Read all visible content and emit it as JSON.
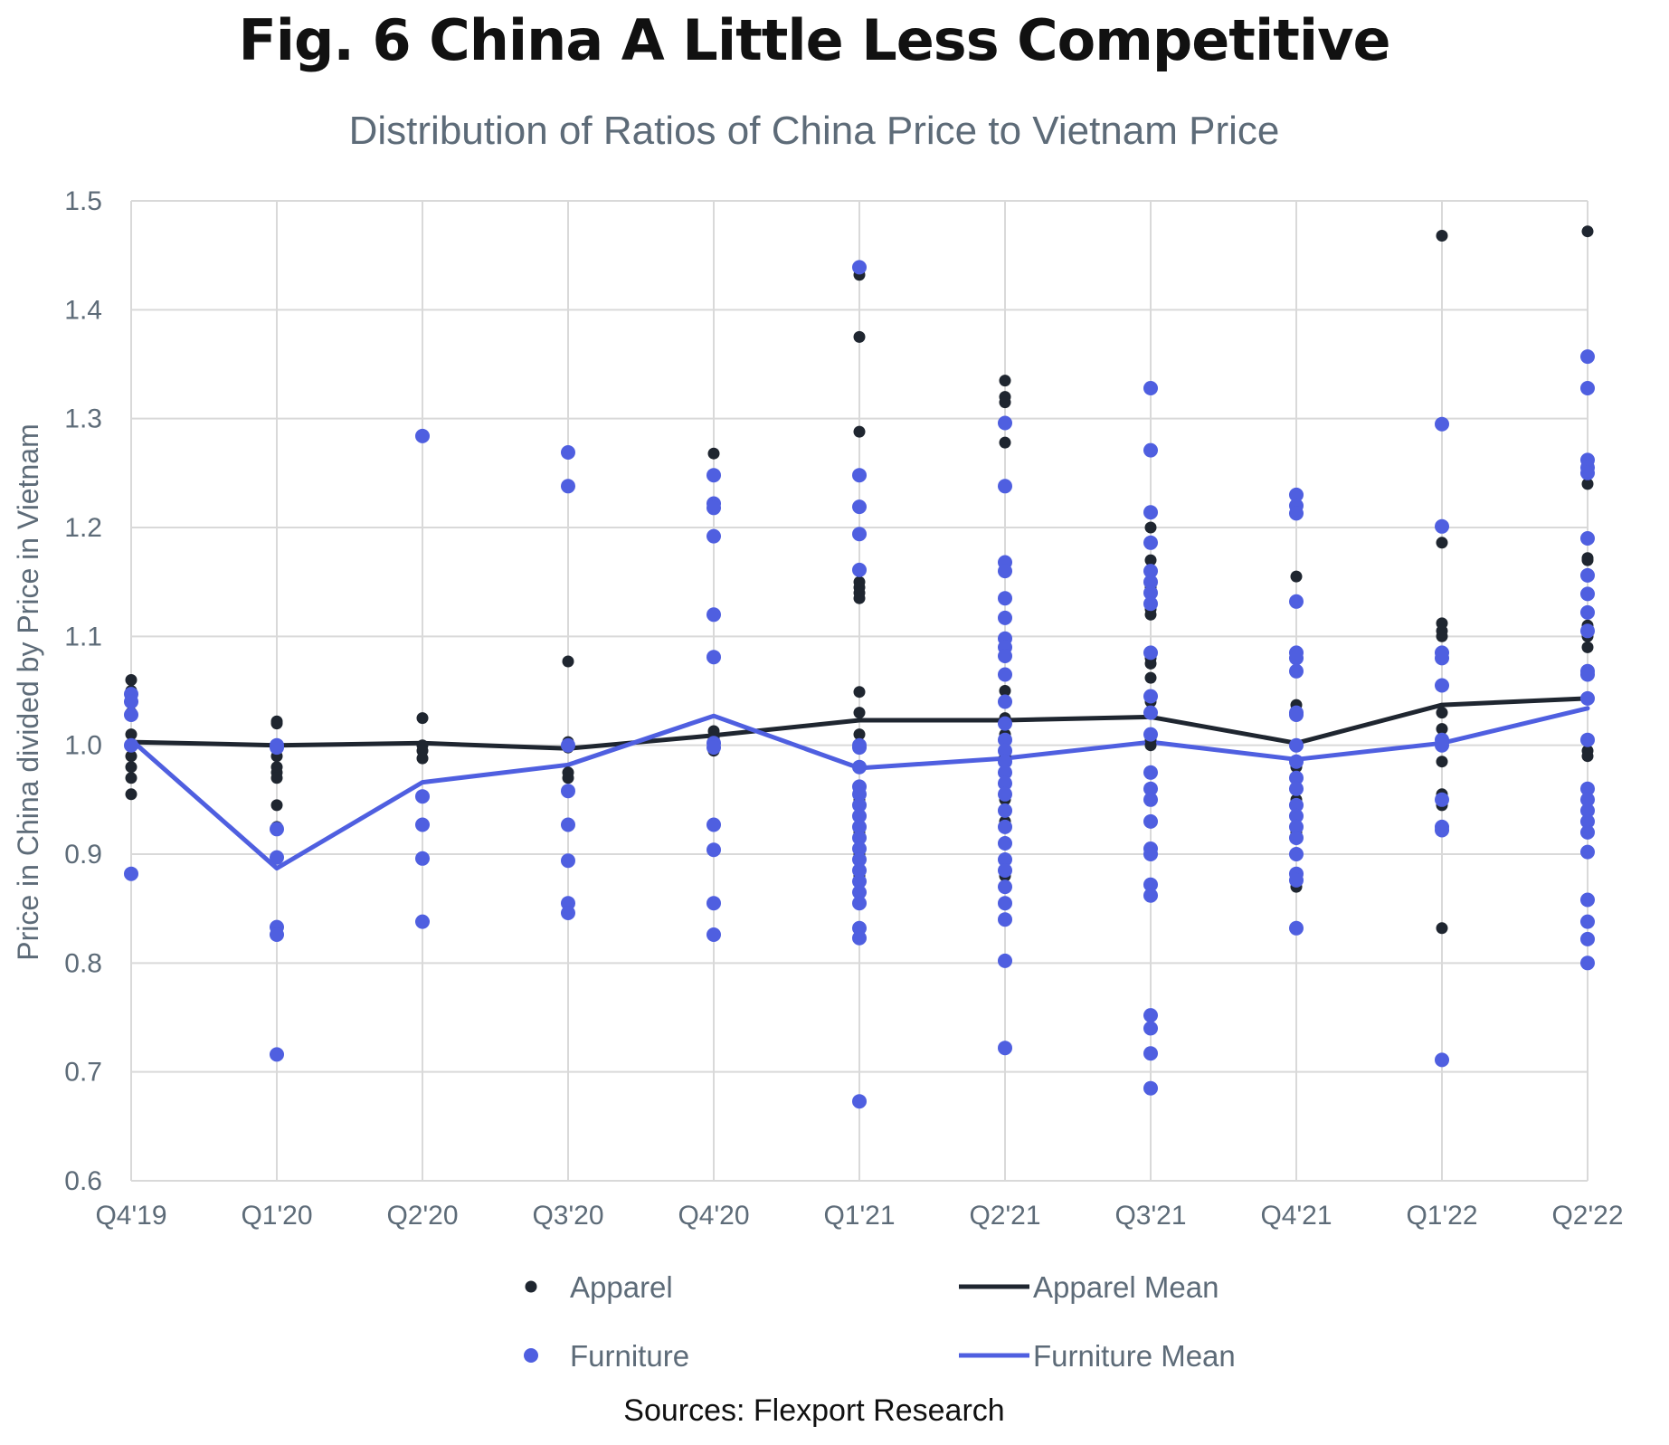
{
  "chart_data": {
    "type": "scatter",
    "title": "Fig. 6 China A Little Less Competitive",
    "subtitle": "Distribution of Ratios of China Price to Vietnam Price",
    "source": "Sources: Flexport Research",
    "ylabel": "Price in China divided by Price in Vietnam",
    "ylim": [
      0.6,
      1.5
    ],
    "yticks": [
      "0.6",
      "0.7",
      "0.8",
      "0.9",
      "1.0",
      "1.1",
      "1.2",
      "1.3",
      "1.4",
      "1.5"
    ],
    "categories": [
      "Q4'19",
      "Q1'20",
      "Q2'20",
      "Q3'20",
      "Q4'20",
      "Q1'21",
      "Q2'21",
      "Q3'21",
      "Q4'21",
      "Q1'22",
      "Q2'22"
    ],
    "grid": true,
    "legend_position": "bottom",
    "colors": {
      "apparel": "#1f2630",
      "furniture": "#4f5fe0",
      "grid": "#d9d9d9",
      "axis_text": "#5d6b78"
    },
    "legend": [
      {
        "label": "Apparel",
        "kind": "marker",
        "series": "apparel"
      },
      {
        "label": "Apparel Mean",
        "kind": "line",
        "series": "apparel"
      },
      {
        "label": "Furniture",
        "kind": "marker",
        "series": "furniture"
      },
      {
        "label": "Furniture Mean",
        "kind": "line",
        "series": "furniture"
      }
    ],
    "series": [
      {
        "name": "Apparel",
        "kind": "points",
        "color": "#1f2630",
        "points": [
          [
            0,
            1.06
          ],
          [
            0,
            1.05
          ],
          [
            0,
            1.04
          ],
          [
            0,
            1.03
          ],
          [
            0,
            1.01
          ],
          [
            0,
            0.99
          ],
          [
            0,
            0.98
          ],
          [
            0,
            0.97
          ],
          [
            0,
            0.955
          ],
          [
            1,
            1.022
          ],
          [
            1,
            1.02
          ],
          [
            1,
            1.0
          ],
          [
            1,
            0.99
          ],
          [
            1,
            0.98
          ],
          [
            1,
            0.975
          ],
          [
            1,
            0.97
          ],
          [
            1,
            0.945
          ],
          [
            1,
            0.925
          ],
          [
            2,
            1.025
          ],
          [
            2,
            1.0
          ],
          [
            2,
            0.995
          ],
          [
            2,
            0.988
          ],
          [
            3,
            1.077
          ],
          [
            3,
            1.003
          ],
          [
            3,
            0.998
          ],
          [
            3,
            0.975
          ],
          [
            3,
            0.97
          ],
          [
            4,
            1.268
          ],
          [
            4,
            1.013
          ],
          [
            4,
            1.007
          ],
          [
            4,
            1.0
          ],
          [
            4,
            0.995
          ],
          [
            5,
            1.432
          ],
          [
            5,
            1.375
          ],
          [
            5,
            1.288
          ],
          [
            5,
            1.16
          ],
          [
            5,
            1.15
          ],
          [
            5,
            1.145
          ],
          [
            5,
            1.14
          ],
          [
            5,
            1.135
          ],
          [
            5,
            1.049
          ],
          [
            5,
            1.03
          ],
          [
            5,
            1.01
          ],
          [
            5,
            1.0
          ],
          [
            5,
            0.98
          ],
          [
            5,
            0.95
          ],
          [
            5,
            0.92
          ],
          [
            5,
            0.9
          ],
          [
            5,
            0.88
          ],
          [
            6,
            1.335
          ],
          [
            6,
            1.32
          ],
          [
            6,
            1.315
          ],
          [
            6,
            1.278
          ],
          [
            6,
            1.05
          ],
          [
            6,
            1.025
          ],
          [
            6,
            1.01
          ],
          [
            6,
            0.99
          ],
          [
            6,
            0.95
          ],
          [
            6,
            0.93
          ],
          [
            6,
            0.91
          ],
          [
            6,
            0.88
          ],
          [
            6,
            0.87
          ],
          [
            6,
            0.855
          ],
          [
            7,
            1.2
          ],
          [
            7,
            1.17
          ],
          [
            7,
            1.145
          ],
          [
            7,
            1.125
          ],
          [
            7,
            1.12
          ],
          [
            7,
            1.08
          ],
          [
            7,
            1.075
          ],
          [
            7,
            1.062
          ],
          [
            7,
            1.04
          ],
          [
            7,
            1.03
          ],
          [
            7,
            1.005
          ],
          [
            7,
            1.0
          ],
          [
            8,
            1.155
          ],
          [
            8,
            1.037
          ],
          [
            8,
            1.0
          ],
          [
            8,
            0.98
          ],
          [
            8,
            0.97
          ],
          [
            8,
            0.95
          ],
          [
            8,
            0.92
          ],
          [
            8,
            0.9
          ],
          [
            8,
            0.87
          ],
          [
            9,
            1.468
          ],
          [
            9,
            1.186
          ],
          [
            9,
            1.112
          ],
          [
            9,
            1.105
          ],
          [
            9,
            1.1
          ],
          [
            9,
            1.03
          ],
          [
            9,
            1.015
          ],
          [
            9,
            1.0
          ],
          [
            9,
            0.985
          ],
          [
            9,
            0.955
          ],
          [
            9,
            0.945
          ],
          [
            9,
            0.832
          ],
          [
            10,
            1.472
          ],
          [
            10,
            1.24
          ],
          [
            10,
            1.172
          ],
          [
            10,
            1.17
          ],
          [
            10,
            1.11
          ],
          [
            10,
            1.1
          ],
          [
            10,
            1.09
          ],
          [
            10,
            1.005
          ],
          [
            10,
            0.995
          ],
          [
            10,
            0.99
          ],
          [
            10,
            0.96
          ],
          [
            10,
            0.93
          ]
        ]
      },
      {
        "name": "Furniture",
        "kind": "points",
        "color": "#4f5fe0",
        "points": [
          [
            0,
            1.047
          ],
          [
            0,
            1.04
          ],
          [
            0,
            1.028
          ],
          [
            0,
            1.0
          ],
          [
            0,
            0.882
          ],
          [
            1,
            1.0
          ],
          [
            1,
            0.998
          ],
          [
            1,
            0.923
          ],
          [
            1,
            0.897
          ],
          [
            1,
            0.833
          ],
          [
            1,
            0.826
          ],
          [
            1,
            0.716
          ],
          [
            2,
            1.284
          ],
          [
            2,
            0.953
          ],
          [
            2,
            0.927
          ],
          [
            2,
            0.896
          ],
          [
            2,
            0.838
          ],
          [
            3,
            1.269
          ],
          [
            3,
            1.238
          ],
          [
            3,
            1.0
          ],
          [
            3,
            0.958
          ],
          [
            3,
            0.927
          ],
          [
            3,
            0.894
          ],
          [
            3,
            0.855
          ],
          [
            3,
            0.846
          ],
          [
            4,
            1.248
          ],
          [
            4,
            1.222
          ],
          [
            4,
            1.218
          ],
          [
            4,
            1.192
          ],
          [
            4,
            1.12
          ],
          [
            4,
            1.081
          ],
          [
            4,
            1.002
          ],
          [
            4,
            0.998
          ],
          [
            4,
            0.927
          ],
          [
            4,
            0.904
          ],
          [
            4,
            0.855
          ],
          [
            4,
            0.826
          ],
          [
            5,
            1.439
          ],
          [
            5,
            1.248
          ],
          [
            5,
            1.219
          ],
          [
            5,
            1.194
          ],
          [
            5,
            1.161
          ],
          [
            5,
            1.0
          ],
          [
            5,
            0.998
          ],
          [
            5,
            0.98
          ],
          [
            5,
            0.962
          ],
          [
            5,
            0.955
          ],
          [
            5,
            0.945
          ],
          [
            5,
            0.935
          ],
          [
            5,
            0.925
          ],
          [
            5,
            0.915
          ],
          [
            5,
            0.905
          ],
          [
            5,
            0.895
          ],
          [
            5,
            0.885
          ],
          [
            5,
            0.875
          ],
          [
            5,
            0.865
          ],
          [
            5,
            0.855
          ],
          [
            5,
            0.832
          ],
          [
            5,
            0.823
          ],
          [
            5,
            0.673
          ],
          [
            6,
            1.296
          ],
          [
            6,
            1.238
          ],
          [
            6,
            1.168
          ],
          [
            6,
            1.16
          ],
          [
            6,
            1.135
          ],
          [
            6,
            1.117
          ],
          [
            6,
            1.098
          ],
          [
            6,
            1.09
          ],
          [
            6,
            1.082
          ],
          [
            6,
            1.065
          ],
          [
            6,
            1.04
          ],
          [
            6,
            1.02
          ],
          [
            6,
            1.005
          ],
          [
            6,
            0.995
          ],
          [
            6,
            0.985
          ],
          [
            6,
            0.975
          ],
          [
            6,
            0.965
          ],
          [
            6,
            0.955
          ],
          [
            6,
            0.94
          ],
          [
            6,
            0.925
          ],
          [
            6,
            0.91
          ],
          [
            6,
            0.895
          ],
          [
            6,
            0.885
          ],
          [
            6,
            0.87
          ],
          [
            6,
            0.855
          ],
          [
            6,
            0.84
          ],
          [
            6,
            0.802
          ],
          [
            6,
            0.722
          ],
          [
            7,
            1.328
          ],
          [
            7,
            1.271
          ],
          [
            7,
            1.214
          ],
          [
            7,
            1.186
          ],
          [
            7,
            1.16
          ],
          [
            7,
            1.15
          ],
          [
            7,
            1.14
          ],
          [
            7,
            1.13
          ],
          [
            7,
            1.085
          ],
          [
            7,
            1.045
          ],
          [
            7,
            1.03
          ],
          [
            7,
            1.01
          ],
          [
            7,
            0.975
          ],
          [
            7,
            0.96
          ],
          [
            7,
            0.95
          ],
          [
            7,
            0.93
          ],
          [
            7,
            0.905
          ],
          [
            7,
            0.9
          ],
          [
            7,
            0.872
          ],
          [
            7,
            0.862
          ],
          [
            7,
            0.752
          ],
          [
            7,
            0.74
          ],
          [
            7,
            0.717
          ],
          [
            7,
            0.685
          ],
          [
            8,
            1.23
          ],
          [
            8,
            1.22
          ],
          [
            8,
            1.213
          ],
          [
            8,
            1.132
          ],
          [
            8,
            1.085
          ],
          [
            8,
            1.08
          ],
          [
            8,
            1.068
          ],
          [
            8,
            1.03
          ],
          [
            8,
            1.028
          ],
          [
            8,
            1.0
          ],
          [
            8,
            0.985
          ],
          [
            8,
            0.97
          ],
          [
            8,
            0.96
          ],
          [
            8,
            0.945
          ],
          [
            8,
            0.935
          ],
          [
            8,
            0.925
          ],
          [
            8,
            0.915
          ],
          [
            8,
            0.9
          ],
          [
            8,
            0.882
          ],
          [
            8,
            0.876
          ],
          [
            8,
            0.832
          ],
          [
            9,
            1.295
          ],
          [
            9,
            1.201
          ],
          [
            9,
            1.085
          ],
          [
            9,
            1.08
          ],
          [
            9,
            1.055
          ],
          [
            9,
            1.005
          ],
          [
            9,
            1.0
          ],
          [
            9,
            0.95
          ],
          [
            9,
            0.925
          ],
          [
            9,
            0.922
          ],
          [
            9,
            0.711
          ],
          [
            10,
            1.357
          ],
          [
            10,
            1.328
          ],
          [
            10,
            1.262
          ],
          [
            10,
            1.255
          ],
          [
            10,
            1.25
          ],
          [
            10,
            1.19
          ],
          [
            10,
            1.156
          ],
          [
            10,
            1.139
          ],
          [
            10,
            1.122
          ],
          [
            10,
            1.105
          ],
          [
            10,
            1.068
          ],
          [
            10,
            1.065
          ],
          [
            10,
            1.043
          ],
          [
            10,
            1.005
          ],
          [
            10,
            0.96
          ],
          [
            10,
            0.95
          ],
          [
            10,
            0.94
          ],
          [
            10,
            0.93
          ],
          [
            10,
            0.92
          ],
          [
            10,
            0.902
          ],
          [
            10,
            0.858
          ],
          [
            10,
            0.838
          ],
          [
            10,
            0.822
          ],
          [
            10,
            0.8
          ]
        ]
      },
      {
        "name": "Apparel Mean",
        "kind": "line",
        "color": "#1f2630",
        "values": [
          1.003,
          1.0,
          1.002,
          0.997,
          1.009,
          1.023,
          1.023,
          1.026,
          1.002,
          1.037,
          1.043
        ]
      },
      {
        "name": "Furniture Mean",
        "kind": "line",
        "color": "#4f5fe0",
        "values": [
          1.005,
          0.887,
          0.966,
          0.982,
          1.027,
          0.979,
          0.988,
          1.003,
          0.987,
          1.002,
          1.034
        ]
      }
    ]
  }
}
